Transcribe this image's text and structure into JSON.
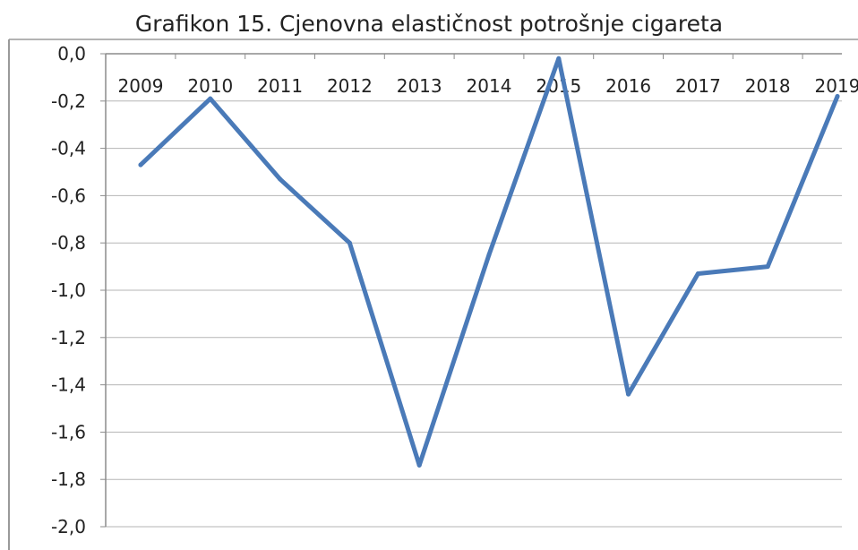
{
  "chart_data": {
    "type": "line",
    "title": "Grafikon 15. Cjenovna elastičnost potrošnje cigareta",
    "xlabel": "",
    "ylabel": "",
    "categories": [
      "2009",
      "2010",
      "2011",
      "2012",
      "2013",
      "2014",
      "2015",
      "2016",
      "2017",
      "2018",
      "2019"
    ],
    "series": [
      {
        "values": [
          -0.47,
          -0.19,
          -0.53,
          -0.8,
          -1.74,
          -0.85,
          -0.02,
          -1.44,
          -0.93,
          -0.9,
          -0.18
        ],
        "color": "#4a7ab8"
      }
    ],
    "y_ticks": [
      "0,0",
      "-0,2",
      "-0,4",
      "-0,6",
      "-0,8",
      "-1,0",
      "-1,2",
      "-1,4",
      "-1,6",
      "-1,8",
      "-2,0"
    ],
    "ylim": [
      -2.0,
      0.0
    ],
    "x_axis_position": "top",
    "grid": true,
    "legend": "none",
    "colors": {
      "line": "#4a7ab8",
      "grid": "#b5b5b5",
      "axis": "#8c8c8c",
      "text": "#222222"
    }
  }
}
